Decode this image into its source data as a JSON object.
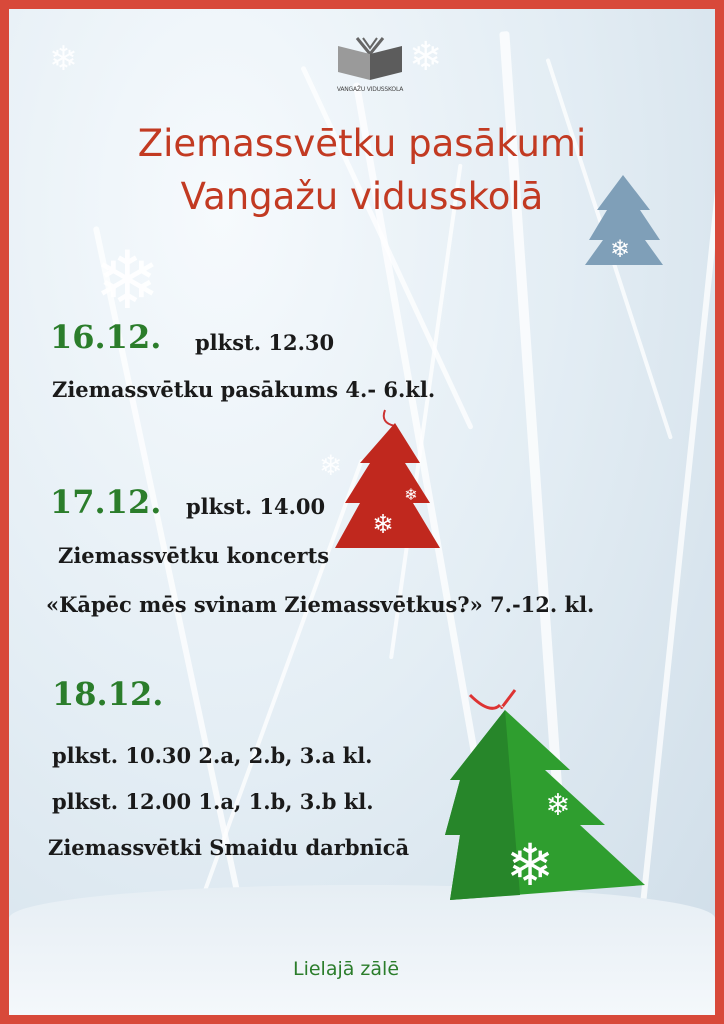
{
  "logo": {
    "text": "VANGAŽU VIDUSSKOLA"
  },
  "title": {
    "line1": "Ziemassvētku pasākumi",
    "line2": "Vangažu vidusskolā"
  },
  "events": [
    {
      "date": "16.12.",
      "time": "plkst. 12.30",
      "description": "Ziemassvētku pasākums 4.- 6.kl."
    },
    {
      "date": "17.12.",
      "time": "plkst. 14.00",
      "description": "Ziemassvētku koncerts",
      "description2": "«Kāpēc mēs svinam Ziemassvētkus?» 7.-12. kl."
    },
    {
      "date": "18.12.",
      "sessions": [
        "plkst. 10.30  2.a, 2.b, 3.a kl.",
        "plkst. 12.00  1.a, 1.b, 3.b kl."
      ],
      "description": "Ziemassvētki Smaidu darbnīcā"
    }
  ],
  "venue": "Lielajā zālē",
  "colors": {
    "border": "#d8493a",
    "title": "#c23a22",
    "date": "#2b7d2b",
    "red_tree": "#c0281e",
    "green_tree": "#2f9e2f",
    "blue_tree": "#7f9fb8"
  }
}
